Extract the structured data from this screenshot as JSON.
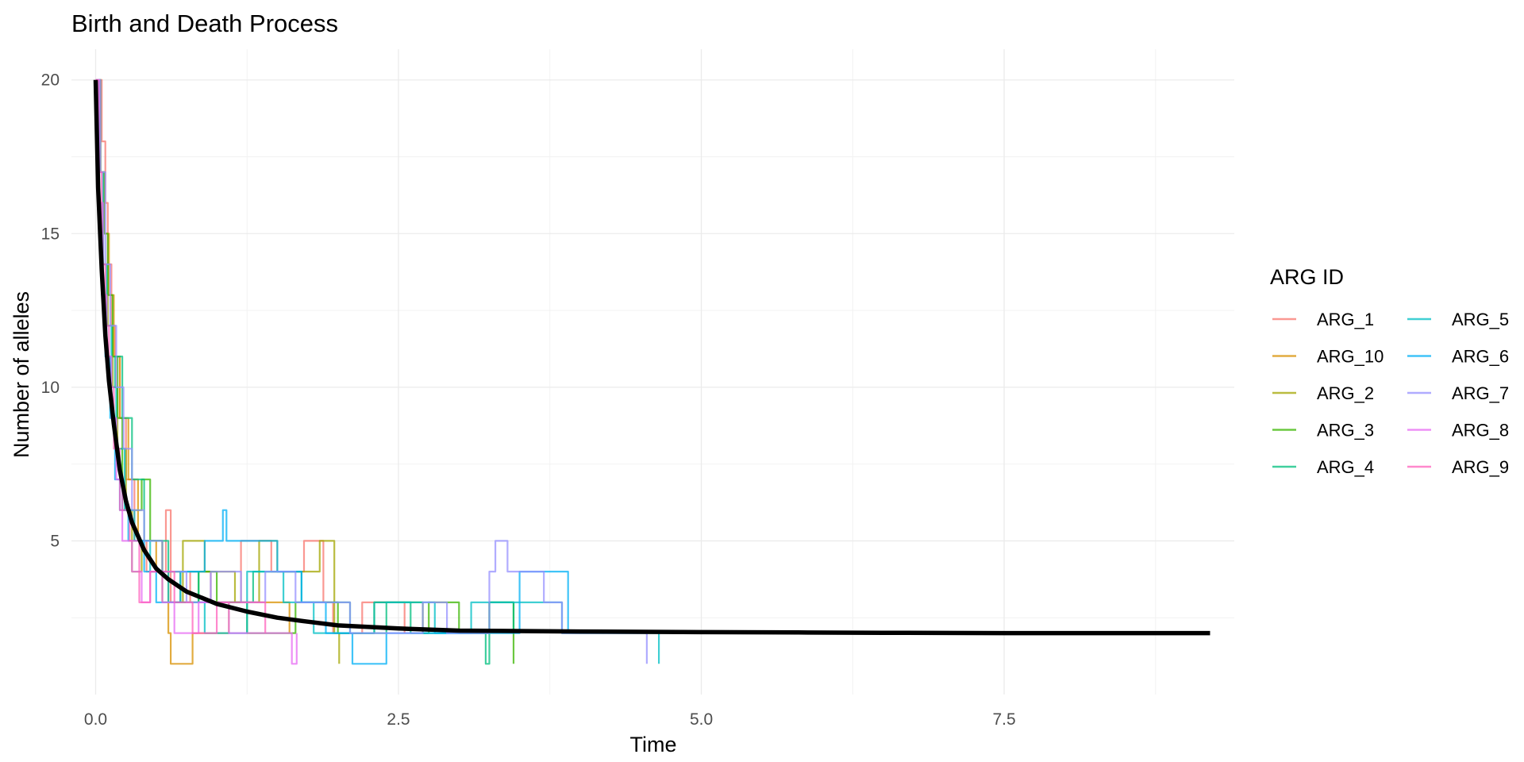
{
  "chart_data": {
    "type": "line",
    "title": "Birth and Death Process",
    "xlabel": "Time",
    "ylabel": "Number of alleles",
    "xlim": [
      -0.2,
      9.4
    ],
    "ylim": [
      0,
      21
    ],
    "x_ticks": [
      0.0,
      2.5,
      5.0,
      7.5
    ],
    "x_tick_labels": [
      "0.0",
      "2.5",
      "5.0",
      "7.5"
    ],
    "y_ticks": [
      5,
      10,
      15,
      20
    ],
    "y_tick_labels": [
      "5",
      "10",
      "15",
      "20"
    ],
    "grid": true,
    "legend": {
      "title": "ARG ID",
      "position": "right",
      "columns": 2
    },
    "series": [
      {
        "name": "ARG_1",
        "color": "#F8766D",
        "step": true,
        "x": [
          0,
          0.05,
          0.08,
          0.1,
          0.13,
          0.16,
          0.2,
          0.25,
          0.32,
          0.42,
          0.58,
          0.62,
          0.78,
          0.95,
          1.2,
          1.45,
          1.72,
          1.88,
          1.96,
          2.2,
          2.55
        ],
        "y": [
          20,
          18,
          16,
          14,
          12,
          11,
          9,
          7,
          5,
          4,
          6,
          3,
          4,
          3,
          5,
          4,
          5,
          3,
          2,
          3,
          2
        ]
      },
      {
        "name": "ARG_10",
        "color": "#D89000",
        "step": true,
        "x": [
          0,
          0.04,
          0.07,
          0.11,
          0.15,
          0.2,
          0.27,
          0.35,
          0.5,
          0.6,
          0.62,
          0.8,
          1.1,
          1.6
        ],
        "y": [
          20,
          17,
          15,
          13,
          11,
          9,
          7,
          5,
          4,
          2,
          1,
          2,
          3,
          2
        ]
      },
      {
        "name": "ARG_2",
        "color": "#A3A500",
        "step": true,
        "x": [
          0,
          0.03,
          0.06,
          0.1,
          0.14,
          0.18,
          0.25,
          0.3,
          0.38,
          0.55,
          0.72,
          0.9,
          1.15,
          1.35,
          1.5,
          1.85,
          1.97,
          2.01
        ],
        "y": [
          20,
          16,
          14,
          12,
          10,
          8,
          6,
          4,
          5,
          3,
          5,
          4,
          3,
          5,
          4,
          5,
          2,
          1
        ]
      },
      {
        "name": "ARG_3",
        "color": "#39B600",
        "step": true,
        "x": [
          0,
          0.04,
          0.07,
          0.1,
          0.14,
          0.18,
          0.22,
          0.38,
          0.45,
          0.55,
          0.7,
          0.85,
          1.0,
          1.25,
          1.65,
          2.0,
          2.3,
          2.7,
          2.75,
          3.0,
          3.25,
          3.45
        ],
        "y": [
          20,
          17,
          15,
          13,
          11,
          9,
          6,
          7,
          5,
          4,
          3,
          4,
          3,
          2,
          3,
          2,
          3,
          2,
          3,
          2,
          3,
          1
        ]
      },
      {
        "name": "ARG_4",
        "color": "#00BF7D",
        "step": true,
        "x": [
          0,
          0.03,
          0.06,
          0.09,
          0.12,
          0.16,
          0.22,
          0.3,
          0.4,
          0.6,
          0.85,
          1.3,
          1.7,
          2.1,
          2.4,
          2.6,
          3.1,
          3.22,
          3.25,
          3.45
        ],
        "y": [
          20,
          16,
          13,
          11,
          10,
          11,
          9,
          7,
          5,
          4,
          3,
          4,
          3,
          2,
          3,
          2,
          2,
          1,
          3,
          2
        ]
      },
      {
        "name": "ARG_5",
        "color": "#00BFC4",
        "step": true,
        "x": [
          0,
          0.03,
          0.06,
          0.09,
          0.13,
          0.17,
          0.24,
          0.32,
          0.45,
          0.6,
          0.9,
          1.25,
          1.55,
          1.8,
          2.3,
          2.8,
          3.1,
          3.85,
          3.95,
          4.6,
          4.65
        ],
        "y": [
          20,
          17,
          14,
          12,
          10,
          8,
          6,
          5,
          4,
          3,
          2,
          4,
          3,
          2,
          3,
          2,
          3,
          2,
          2,
          2,
          1
        ]
      },
      {
        "name": "ARG_6",
        "color": "#00B0F6",
        "step": true,
        "x": [
          0,
          0.02,
          0.05,
          0.08,
          0.12,
          0.16,
          0.2,
          0.27,
          0.4,
          0.5,
          0.7,
          0.9,
          1.05,
          1.08,
          1.5,
          1.7,
          1.9,
          2.1,
          2.12,
          2.4,
          3.0,
          3.5,
          3.9
        ],
        "y": [
          20,
          16,
          13,
          11,
          9,
          7,
          6,
          5,
          4,
          3,
          4,
          5,
          6,
          5,
          4,
          3,
          2,
          2,
          1,
          2,
          2,
          4,
          2
        ]
      },
      {
        "name": "ARG_7",
        "color": "#9590FF",
        "step": true,
        "x": [
          0,
          0.04,
          0.08,
          0.12,
          0.17,
          0.23,
          0.3,
          0.4,
          0.55,
          0.75,
          0.95,
          1.2,
          1.4,
          1.65,
          2.1,
          2.7,
          2.9,
          3.25,
          3.3,
          3.4,
          3.7,
          3.85,
          4.15,
          4.5,
          4.55
        ],
        "y": [
          20,
          17,
          14,
          12,
          10,
          8,
          6,
          5,
          4,
          3,
          4,
          3,
          4,
          3,
          2,
          3,
          2,
          4,
          5,
          4,
          3,
          2,
          2,
          2,
          1
        ]
      },
      {
        "name": "ARG_8",
        "color": "#E76BF3",
        "step": true,
        "x": [
          0,
          0.03,
          0.06,
          0.09,
          0.13,
          0.17,
          0.22,
          0.3,
          0.38,
          0.45,
          0.55,
          0.65,
          0.85,
          1.1,
          1.3,
          1.62,
          1.66
        ],
        "y": [
          20,
          16,
          13,
          11,
          9,
          7,
          5,
          4,
          3,
          4,
          3,
          2,
          3,
          2,
          2,
          1,
          2
        ]
      },
      {
        "name": "ARG_9",
        "color": "#FF62BC",
        "step": true,
        "x": [
          0,
          0.02,
          0.05,
          0.08,
          0.11,
          0.15,
          0.2,
          0.28,
          0.36,
          0.45,
          0.65,
          0.8,
          1.0,
          1.4
        ],
        "y": [
          20,
          17,
          14,
          12,
          10,
          8,
          6,
          5,
          3,
          4,
          3,
          2,
          3,
          2
        ]
      },
      {
        "name": "",
        "color": "#000000",
        "step": false,
        "mean_curve": true,
        "x": [
          0,
          0.02,
          0.05,
          0.08,
          0.11,
          0.15,
          0.2,
          0.25,
          0.3,
          0.4,
          0.5,
          0.6,
          0.75,
          1.0,
          1.25,
          1.5,
          1.75,
          2.0,
          2.5,
          3.0,
          4.0,
          5.0,
          5.8,
          6.5,
          7.5,
          8.5,
          9.2
        ],
        "y": [
          20,
          16.5,
          13.8,
          11.7,
          10.2,
          8.8,
          7.3,
          6.3,
          5.6,
          4.7,
          4.1,
          3.75,
          3.35,
          2.95,
          2.7,
          2.5,
          2.37,
          2.25,
          2.15,
          2.08,
          2.05,
          2.03,
          2.02,
          2.01,
          2.0,
          2.0,
          2.0
        ]
      }
    ]
  }
}
